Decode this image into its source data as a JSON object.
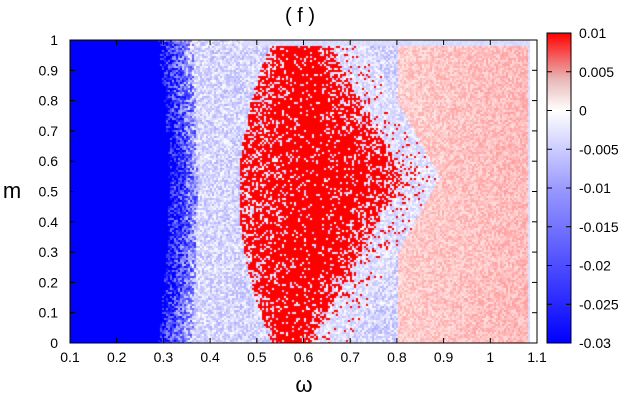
{
  "chart_data": {
    "type": "heatmap",
    "title": "( f )",
    "xlabel": "ω",
    "ylabel": "m",
    "xlim": [
      0.1,
      1.1
    ],
    "ylim": [
      0,
      1
    ],
    "x_ticks": [
      "0.1",
      "0.2",
      "0.3",
      "0.4",
      "0.5",
      "0.6",
      "0.7",
      "0.8",
      "0.9",
      "1",
      "1.1"
    ],
    "y_ticks": [
      "0",
      "0.1",
      "0.2",
      "0.3",
      "0.4",
      "0.5",
      "0.6",
      "0.7",
      "0.8",
      "0.9",
      "1"
    ],
    "colorbar": {
      "range": [
        -0.03,
        0.01
      ],
      "ticks": [
        "0.01",
        "0.005",
        "0",
        "-0.005",
        "-0.01",
        "-0.015",
        "-0.02",
        "-0.025",
        "-0.03"
      ],
      "colors": {
        "low": "#0000ff",
        "mid": "#ffffff",
        "high": "#ff0000"
      }
    },
    "grid": false
  }
}
